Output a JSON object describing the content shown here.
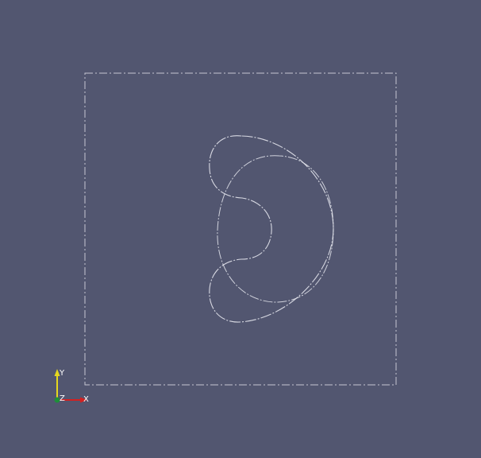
{
  "viewer": {
    "background_color": "#525670",
    "outline_color": "#d9dbe3",
    "curve_color": "#e6e7ee"
  },
  "axes_triad": {
    "x_label": "X",
    "y_label": "Y",
    "z_label": "Z",
    "x_color": "#d42020",
    "y_color": "#e6d81e",
    "z_color": "#1e8f3a"
  }
}
